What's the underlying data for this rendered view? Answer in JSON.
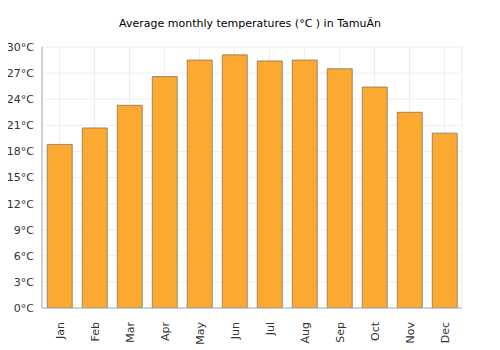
{
  "chart_data": {
    "type": "bar",
    "title": "Average monthly temperatures (°C ) in TamuÃn",
    "categories": [
      "Jan",
      "Feb",
      "Mar",
      "Apr",
      "May",
      "Jun",
      "Jul",
      "Aug",
      "Sep",
      "Oct",
      "Nov",
      "Dec"
    ],
    "values": [
      18.8,
      20.7,
      23.3,
      26.6,
      28.5,
      29.1,
      28.4,
      28.5,
      27.5,
      25.4,
      22.5,
      20.1
    ],
    "color": "#fba931",
    "ylim": [
      0,
      30
    ],
    "yticks": [
      {
        "value": 0,
        "label": "0°C"
      },
      {
        "value": 3,
        "label": "3°C"
      },
      {
        "value": 6,
        "label": "6°C"
      },
      {
        "value": 9,
        "label": "9°C"
      },
      {
        "value": 12,
        "label": "12°C"
      },
      {
        "value": 15,
        "label": "15°C"
      },
      {
        "value": 18,
        "label": "18°C"
      },
      {
        "value": 21,
        "label": "21°C"
      },
      {
        "value": 24,
        "label": "24°C"
      },
      {
        "value": 27,
        "label": "27°C"
      },
      {
        "value": 30,
        "label": "30°C"
      }
    ],
    "grid": true
  }
}
